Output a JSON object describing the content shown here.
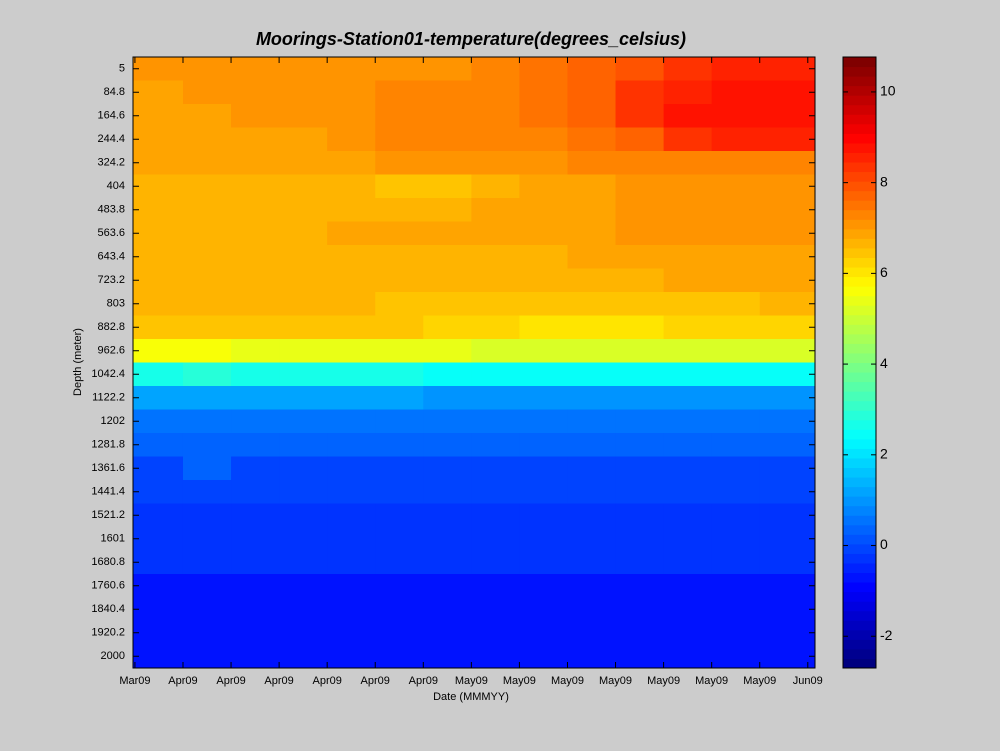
{
  "chart_data": {
    "type": "heatmap",
    "title": "Moorings-Station01-temperature(degrees_celsius)",
    "xlabel": "Date (MMMYY)",
    "ylabel": "Depth (meter)",
    "xlim": [
      -0.04,
      14.15
    ],
    "xticks": [
      {
        "value": 0,
        "label": "Mar09"
      },
      {
        "value": 1,
        "label": "Apr09"
      },
      {
        "value": 2,
        "label": "Apr09"
      },
      {
        "value": 3,
        "label": "Apr09"
      },
      {
        "value": 4,
        "label": "Apr09"
      },
      {
        "value": 5,
        "label": "Apr09"
      },
      {
        "value": 6,
        "label": "Apr09"
      },
      {
        "value": 7,
        "label": "May09"
      },
      {
        "value": 8,
        "label": "May09"
      },
      {
        "value": 9,
        "label": "May09"
      },
      {
        "value": 10,
        "label": "May09"
      },
      {
        "value": 11,
        "label": "May09"
      },
      {
        "value": 12,
        "label": "May09"
      },
      {
        "value": 13,
        "label": "May09"
      },
      {
        "value": 14,
        "label": "Jun09"
      }
    ],
    "ylim": [
      -34.9,
      2039.9
    ],
    "y_reversed": true,
    "yticks": [
      5,
      84.8,
      164.6,
      244.4,
      324.2,
      404,
      483.8,
      563.6,
      643.4,
      723.2,
      803,
      882.8,
      962.6,
      1042.4,
      1122.2,
      1202,
      1281.8,
      1361.6,
      1441.4,
      1521.2,
      1601,
      1680.8,
      1760.6,
      1840.4,
      1920.2,
      2000
    ],
    "y": [
      5,
      84.8,
      164.6,
      244.4,
      324.2,
      404,
      483.8,
      563.6,
      643.4,
      723.2,
      803,
      882.8,
      962.6,
      1042.4,
      1122.2,
      1202,
      1281.8,
      1361.6,
      1441.4,
      1521.2,
      1601,
      1680.8,
      1760.6,
      1840.4,
      1920.2,
      2000
    ],
    "colormap": "jet",
    "clim": [
      -2.7,
      10.77
    ],
    "colorbar_ticks": [
      -2,
      0,
      2,
      4,
      6,
      8,
      10
    ],
    "z": [
      [
        7.0,
        7.0,
        7.0,
        7.0,
        7.0,
        7.0,
        7.0,
        7.3,
        7.5,
        7.8,
        8.0,
        8.3,
        8.5,
        8.5
      ],
      [
        6.9,
        7.0,
        7.0,
        7.0,
        7.0,
        7.3,
        7.4,
        7.4,
        7.5,
        7.8,
        8.3,
        8.6,
        8.7,
        8.7
      ],
      [
        6.9,
        6.9,
        7.0,
        7.0,
        7.0,
        7.3,
        7.3,
        7.3,
        7.5,
        7.7,
        8.3,
        8.7,
        8.8,
        8.8
      ],
      [
        6.8,
        6.8,
        6.9,
        6.9,
        7.0,
        7.2,
        7.2,
        7.3,
        7.3,
        7.5,
        7.8,
        8.3,
        8.5,
        8.6
      ],
      [
        6.8,
        6.8,
        6.8,
        6.8,
        6.9,
        7.0,
        7.0,
        7.0,
        7.0,
        7.2,
        7.2,
        7.3,
        7.3,
        7.3
      ],
      [
        6.7,
        6.7,
        6.7,
        6.7,
        6.7,
        6.5,
        6.5,
        6.7,
        6.8,
        6.9,
        7.0,
        7.1,
        7.1,
        7.1
      ],
      [
        6.7,
        6.7,
        6.7,
        6.7,
        6.7,
        6.7,
        6.7,
        6.8,
        6.8,
        6.9,
        7.0,
        7.0,
        7.0,
        7.0
      ],
      [
        6.7,
        6.7,
        6.7,
        6.7,
        6.8,
        6.8,
        6.8,
        6.8,
        6.8,
        6.9,
        7.0,
        7.0,
        7.0,
        7.0
      ],
      [
        6.6,
        6.6,
        6.6,
        6.6,
        6.7,
        6.7,
        6.7,
        6.7,
        6.7,
        6.8,
        6.9,
        6.9,
        6.9,
        6.9
      ],
      [
        6.6,
        6.6,
        6.6,
        6.6,
        6.6,
        6.6,
        6.6,
        6.6,
        6.6,
        6.7,
        6.7,
        6.8,
        6.8,
        6.8
      ],
      [
        6.6,
        6.6,
        6.6,
        6.6,
        6.6,
        6.5,
        6.5,
        6.4,
        6.4,
        6.4,
        6.4,
        6.5,
        6.5,
        6.6
      ],
      [
        6.5,
        6.5,
        6.5,
        6.5,
        6.5,
        6.4,
        6.3,
        6.2,
        6.1,
        6.1,
        6.1,
        6.2,
        6.2,
        6.3
      ],
      [
        5.6,
        5.6,
        5.5,
        5.5,
        5.4,
        5.4,
        5.3,
        5.2,
        5.1,
        5.1,
        5.1,
        5.2,
        5.2,
        5.2
      ],
      [
        2.7,
        2.8,
        2.6,
        2.6,
        2.6,
        2.6,
        2.5,
        2.5,
        2.4,
        2.4,
        2.4,
        2.4,
        2.4,
        2.4
      ],
      [
        1.2,
        1.2,
        1.1,
        1.1,
        1.1,
        1.1,
        1.0,
        1.0,
        1.0,
        1.0,
        1.0,
        1.0,
        1.0,
        1.0
      ],
      [
        0.6,
        0.6,
        0.6,
        0.6,
        0.6,
        0.6,
        0.6,
        0.6,
        0.6,
        0.6,
        0.6,
        0.6,
        0.6,
        0.6
      ],
      [
        0.4,
        0.4,
        0.4,
        0.4,
        0.4,
        0.4,
        0.4,
        0.4,
        0.4,
        0.4,
        0.4,
        0.4,
        0.4,
        0.4
      ],
      [
        0.0,
        0.3,
        0.0,
        0.0,
        0.0,
        0.0,
        0.0,
        0.0,
        0.0,
        0.0,
        0.0,
        0.0,
        0.0,
        0.0
      ],
      [
        0.0,
        0.0,
        0.0,
        0.0,
        0.0,
        0.0,
        0.0,
        0.0,
        0.0,
        0.0,
        0.0,
        0.0,
        0.0,
        0.0
      ],
      [
        -0.3,
        -0.3,
        -0.3,
        -0.3,
        -0.3,
        -0.3,
        -0.3,
        -0.3,
        -0.3,
        -0.3,
        -0.3,
        -0.3,
        -0.3,
        -0.3
      ],
      [
        -0.3,
        -0.3,
        -0.3,
        -0.3,
        -0.3,
        -0.3,
        -0.3,
        -0.3,
        -0.3,
        -0.3,
        -0.3,
        -0.3,
        -0.3,
        -0.3
      ],
      [
        -0.3,
        -0.3,
        -0.3,
        -0.3,
        -0.3,
        -0.3,
        -0.3,
        -0.3,
        -0.3,
        -0.3,
        -0.3,
        -0.3,
        -0.3,
        -0.3
      ],
      [
        -0.8,
        -0.8,
        -0.8,
        -0.8,
        -0.8,
        -0.8,
        -0.8,
        -0.8,
        -0.8,
        -0.8,
        -0.8,
        -0.8,
        -0.8,
        -0.8
      ],
      [
        -0.8,
        -0.8,
        -0.8,
        -0.8,
        -0.8,
        -0.8,
        -0.8,
        -0.8,
        -0.8,
        -0.8,
        -0.8,
        -0.8,
        -0.8,
        -0.8
      ],
      [
        -0.8,
        -0.8,
        -0.8,
        -0.8,
        -0.8,
        -0.8,
        -0.8,
        -0.8,
        -0.8,
        -0.8,
        -0.8,
        -0.8,
        -0.8,
        -0.8
      ],
      [
        -0.8,
        -0.8,
        -0.8,
        -0.8,
        -0.8,
        -0.8,
        -0.8,
        -0.8,
        -0.8,
        -0.8,
        -0.8,
        -0.8,
        -0.8,
        -0.8
      ]
    ]
  }
}
